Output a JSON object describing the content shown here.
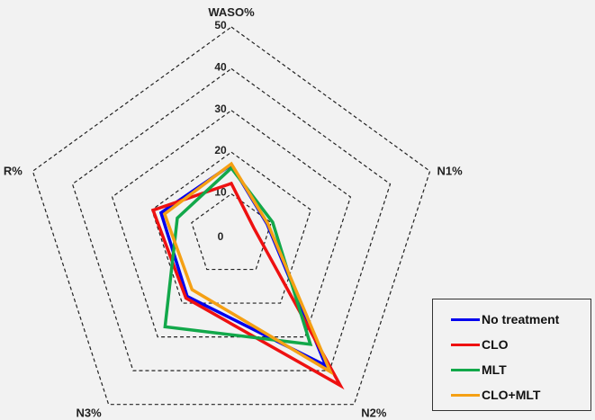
{
  "chart_data": {
    "type": "radar",
    "title": "",
    "axes": [
      "WASO%",
      "N1%",
      "N2%",
      "N3%",
      "R%"
    ],
    "ticks": [
      0,
      10,
      20,
      30,
      40,
      50
    ],
    "range": [
      0,
      50
    ],
    "series": [
      {
        "name": "No treatment",
        "color": "#0000ee",
        "values": [
          17,
          9,
          38.5,
          18,
          17.7
        ]
      },
      {
        "name": "CLO",
        "color": "#ee1111",
        "values": [
          12.5,
          5.7,
          44.4,
          18.5,
          19.7
        ]
      },
      {
        "name": "MLT",
        "color": "#12a84a",
        "values": [
          16.2,
          10.4,
          32.2,
          27,
          13.6
        ]
      },
      {
        "name": "CLO+MLT",
        "color": "#f5a014",
        "values": [
          17.2,
          9.2,
          40.3,
          16,
          16.8
        ]
      }
    ],
    "legend_position": "bottom-right"
  }
}
